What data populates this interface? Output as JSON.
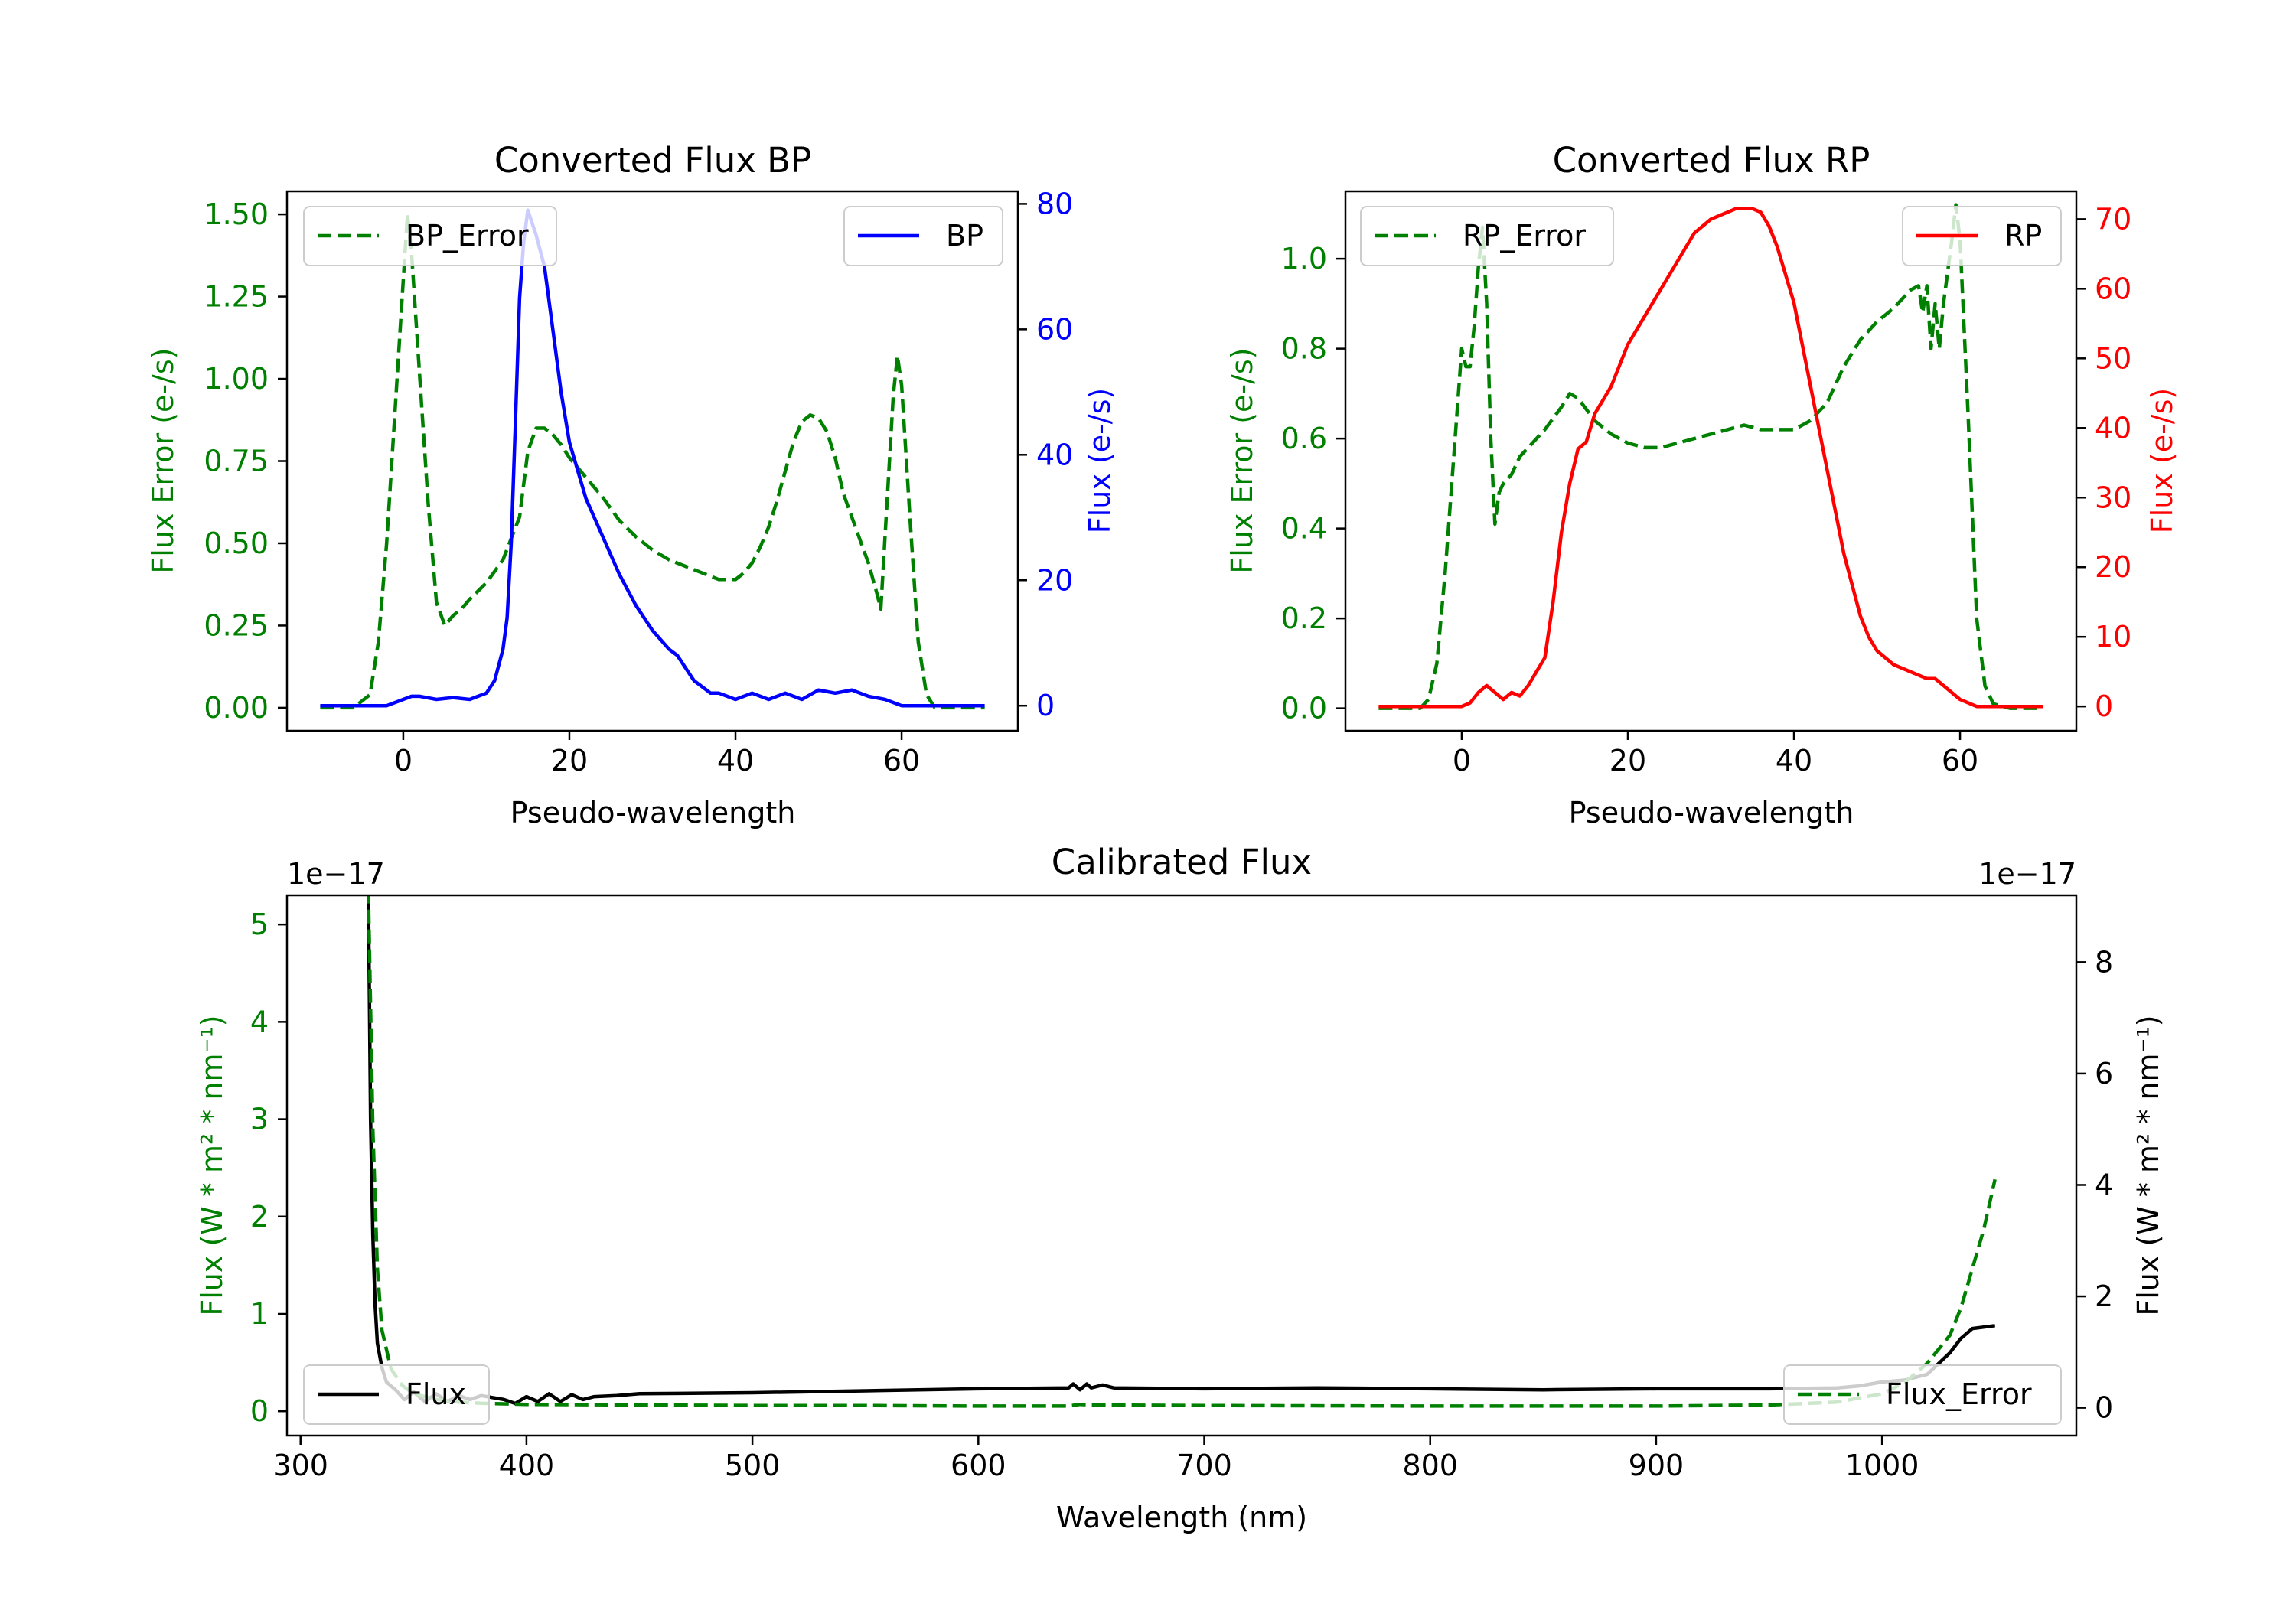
{
  "chart_data": [
    {
      "id": "bp",
      "type": "line",
      "title": "Converted Flux BP",
      "xlabel": "Pseudo-wavelength",
      "xlim": [
        -14,
        74
      ],
      "xticks": [
        0,
        20,
        40,
        60
      ],
      "ylabel_left": "Flux Error (e-/s)",
      "ylim_left": [
        -0.07,
        1.57
      ],
      "yticks_left": [
        "0.00",
        "0.25",
        "0.50",
        "0.75",
        "1.00",
        "1.25",
        "1.50"
      ],
      "ylabel_right": "Flux (e-/s)",
      "ylim_right": [
        -4,
        82
      ],
      "yticks_right": [
        0,
        20,
        40,
        60,
        80
      ],
      "legend_left": "BP_Error",
      "legend_right": "BP",
      "colors": {
        "error": "#008000",
        "flux": "#0000ff",
        "left_axis": "#008000",
        "right_axis": "#0000ff"
      },
      "series": [
        {
          "name": "BP_Error",
          "axis": "left",
          "style": "dashed",
          "x": [
            -10,
            -6,
            -4,
            -3,
            -2,
            -1,
            0,
            0.5,
            1,
            2,
            3,
            4,
            5,
            6,
            7,
            8,
            10,
            12,
            14,
            15,
            16,
            17,
            18,
            19,
            20,
            22,
            24,
            26,
            28,
            30,
            32,
            34,
            36,
            37,
            38,
            39,
            40,
            41,
            42,
            43,
            44,
            45,
            46,
            47,
            48,
            49,
            50,
            51,
            52,
            53,
            54,
            55,
            56,
            57,
            57.5,
            58,
            59,
            59.5,
            60,
            61,
            62,
            63,
            64,
            66,
            70
          ],
          "y": [
            0.0,
            0.0,
            0.04,
            0.2,
            0.5,
            0.9,
            1.3,
            1.5,
            1.38,
            1.0,
            0.62,
            0.32,
            0.25,
            0.28,
            0.3,
            0.33,
            0.38,
            0.45,
            0.58,
            0.78,
            0.85,
            0.85,
            0.83,
            0.8,
            0.76,
            0.7,
            0.64,
            0.57,
            0.52,
            0.48,
            0.45,
            0.43,
            0.41,
            0.4,
            0.39,
            0.39,
            0.39,
            0.41,
            0.44,
            0.49,
            0.55,
            0.63,
            0.72,
            0.81,
            0.87,
            0.89,
            0.88,
            0.84,
            0.76,
            0.65,
            0.58,
            0.51,
            0.44,
            0.35,
            0.3,
            0.52,
            0.95,
            1.07,
            0.98,
            0.58,
            0.2,
            0.04,
            0.0,
            0.0,
            0.0
          ]
        },
        {
          "name": "BP",
          "axis": "right",
          "style": "solid",
          "x": [
            -10,
            -6,
            -2,
            0,
            1,
            2,
            4,
            6,
            8,
            9,
            10,
            11,
            12,
            12.5,
            13,
            13.5,
            14,
            14.5,
            15,
            15.5,
            16,
            17,
            18,
            19,
            20,
            22,
            24,
            26,
            28,
            30,
            32,
            33,
            34,
            35,
            36,
            37,
            38,
            39,
            40,
            42,
            44,
            46,
            48,
            50,
            52,
            54,
            56,
            58,
            60,
            62,
            66,
            70
          ],
          "y": [
            0,
            0,
            0,
            1,
            1.5,
            1.5,
            1,
            1.3,
            1,
            1.5,
            2,
            4,
            9,
            14,
            26,
            45,
            65,
            74,
            79,
            77,
            75,
            70,
            60,
            50,
            42,
            33,
            27,
            21,
            16,
            12,
            9,
            8,
            6,
            4,
            3,
            2,
            2,
            1.5,
            1,
            2,
            1,
            2,
            1,
            2.5,
            2,
            2.5,
            1.5,
            1,
            0,
            0,
            0,
            0
          ]
        }
      ]
    },
    {
      "id": "rp",
      "type": "line",
      "title": "Converted Flux RP",
      "xlabel": "Pseudo-wavelength",
      "xlim": [
        -14,
        74
      ],
      "xticks": [
        0,
        20,
        40,
        60
      ],
      "ylabel_left": "Flux Error (e-/s)",
      "ylim_left": [
        -0.05,
        1.15
      ],
      "yticks_left": [
        "0.0",
        "0.2",
        "0.4",
        "0.6",
        "0.8",
        "1.0"
      ],
      "ylabel_right": "Flux (e-/s)",
      "ylim_right": [
        -3.5,
        74
      ],
      "yticks_right": [
        0,
        10,
        20,
        30,
        40,
        50,
        60,
        70
      ],
      "legend_left": "RP_Error",
      "legend_right": "RP",
      "colors": {
        "error": "#008000",
        "flux": "#ff0000",
        "left_axis": "#008000",
        "right_axis": "#ff0000"
      },
      "series": [
        {
          "name": "RP_Error",
          "axis": "left",
          "style": "dashed",
          "x": [
            -10,
            -5,
            -4,
            -3,
            -2,
            -1,
            0,
            0.5,
            1,
            1.5,
            2,
            2.5,
            3,
            3.5,
            4,
            4.5,
            5,
            6,
            7,
            8,
            10,
            12,
            13,
            14,
            16,
            18,
            20,
            22,
            24,
            26,
            28,
            30,
            32,
            34,
            36,
            38,
            40,
            42,
            44,
            46,
            48,
            50,
            52,
            54,
            55,
            55.5,
            56,
            56.5,
            57,
            57.5,
            58,
            59,
            59.5,
            60,
            61,
            62,
            63,
            64,
            66,
            70
          ],
          "y": [
            0.0,
            0.0,
            0.02,
            0.1,
            0.3,
            0.55,
            0.8,
            0.76,
            0.76,
            0.85,
            0.98,
            1.07,
            0.9,
            0.6,
            0.41,
            0.48,
            0.5,
            0.52,
            0.56,
            0.58,
            0.62,
            0.67,
            0.7,
            0.69,
            0.64,
            0.61,
            0.59,
            0.58,
            0.58,
            0.59,
            0.6,
            0.61,
            0.62,
            0.63,
            0.62,
            0.62,
            0.62,
            0.64,
            0.68,
            0.76,
            0.82,
            0.86,
            0.89,
            0.93,
            0.94,
            0.88,
            0.94,
            0.8,
            0.9,
            0.8,
            0.9,
            1.04,
            1.12,
            1.04,
            0.64,
            0.2,
            0.05,
            0.01,
            0.0,
            0.0
          ]
        },
        {
          "name": "RP",
          "axis": "right",
          "style": "solid",
          "x": [
            -10,
            -4,
            -2,
            0,
            1,
            2,
            3,
            4,
            5,
            6,
            7,
            8,
            9,
            10,
            11,
            12,
            13,
            14,
            15,
            16,
            18,
            20,
            22,
            24,
            26,
            28,
            30,
            31,
            32,
            33,
            34,
            35,
            36,
            37,
            38,
            40,
            42,
            44,
            46,
            48,
            49,
            50,
            51,
            52,
            54,
            56,
            57,
            58,
            60,
            62,
            66,
            70
          ],
          "y": [
            0,
            0,
            0,
            0,
            0.5,
            2,
            3,
            2,
            1,
            2,
            1.5,
            3,
            5,
            7,
            15,
            25,
            32,
            37,
            38,
            42,
            46,
            52,
            56,
            60,
            64,
            68,
            70,
            70.5,
            71,
            71.5,
            71.5,
            71.5,
            71,
            69,
            66,
            58,
            46,
            34,
            22,
            13,
            10,
            8,
            7,
            6,
            5,
            4,
            4,
            3,
            1,
            0,
            0,
            0
          ]
        }
      ]
    },
    {
      "id": "cal",
      "type": "line",
      "title": "Calibrated Flux",
      "xlabel": "Wavelength (nm)",
      "xlim": [
        294,
        1086
      ],
      "xticks": [
        300,
        400,
        500,
        600,
        700,
        800,
        900,
        1000
      ],
      "ylabel_left": "Flux (W * m² * nm⁻¹)",
      "ylim_left": [
        -0.25,
        5.3
      ],
      "yticks_left": [
        0,
        1,
        2,
        3,
        4,
        5
      ],
      "ylabel_right": "Flux (W * m² * nm⁻¹)",
      "ylim_right": [
        -0.5,
        9.2
      ],
      "yticks_right": [
        0,
        2,
        4,
        6,
        8
      ],
      "offset_left": "1e−17",
      "offset_right": "1e−17",
      "legend_left": "Flux",
      "legend_right": "Flux_Error",
      "colors": {
        "error": "#008000",
        "flux": "#000000",
        "left_axis": "#008000",
        "right_axis": "#000000"
      },
      "series": [
        {
          "name": "Flux",
          "axis": "left",
          "style": "solid",
          "x": [
            330,
            331,
            332,
            333,
            334,
            336,
            338,
            342,
            346,
            350,
            355,
            360,
            365,
            370,
            375,
            380,
            390,
            395,
            400,
            405,
            410,
            415,
            420,
            425,
            430,
            440,
            450,
            500,
            550,
            600,
            640,
            642,
            645,
            648,
            650,
            655,
            660,
            700,
            750,
            800,
            850,
            900,
            950,
            980,
            990,
            1000,
            1010,
            1020,
            1030,
            1035,
            1040,
            1050
          ],
          "y": [
            5.4,
            3.0,
            1.8,
            1.1,
            0.7,
            0.45,
            0.3,
            0.22,
            0.12,
            0.2,
            0.1,
            0.18,
            0.1,
            0.16,
            0.12,
            0.16,
            0.12,
            0.08,
            0.15,
            0.1,
            0.18,
            0.1,
            0.17,
            0.12,
            0.15,
            0.16,
            0.18,
            0.19,
            0.21,
            0.23,
            0.24,
            0.28,
            0.22,
            0.28,
            0.24,
            0.27,
            0.24,
            0.23,
            0.24,
            0.23,
            0.22,
            0.23,
            0.23,
            0.24,
            0.26,
            0.3,
            0.32,
            0.38,
            0.6,
            0.75,
            0.85,
            0.88
          ]
        },
        {
          "name": "Flux_Error",
          "axis": "right",
          "style": "dashed",
          "x": [
            330,
            332,
            334,
            336,
            340,
            345,
            350,
            360,
            370,
            380,
            400,
            450,
            500,
            550,
            600,
            640,
            645,
            650,
            700,
            800,
            900,
            950,
            980,
            1000,
            1010,
            1020,
            1030,
            1035,
            1040,
            1045,
            1050
          ],
          "y": [
            9.3,
            5.0,
            2.5,
            1.4,
            0.7,
            0.4,
            0.25,
            0.15,
            0.1,
            0.08,
            0.06,
            0.05,
            0.04,
            0.04,
            0.03,
            0.03,
            0.06,
            0.05,
            0.04,
            0.03,
            0.03,
            0.05,
            0.1,
            0.25,
            0.45,
            0.8,
            1.3,
            1.8,
            2.5,
            3.2,
            4.1
          ]
        }
      ]
    }
  ]
}
